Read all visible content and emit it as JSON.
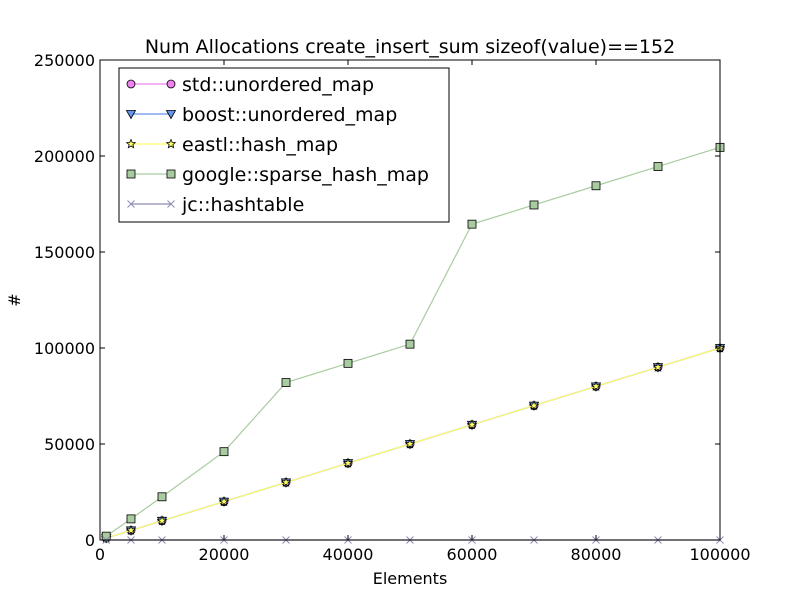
{
  "chart_data": {
    "type": "line",
    "title": "Num Allocations create_insert_sum sizeof(value)==152",
    "xlabel": "Elements",
    "ylabel": "#",
    "xlim": [
      0,
      100000
    ],
    "ylim": [
      0,
      250000
    ],
    "x_ticks": [
      "0",
      "20000",
      "40000",
      "60000",
      "80000",
      "100000"
    ],
    "y_ticks": [
      "0",
      "50000",
      "100000",
      "150000",
      "200000",
      "250000"
    ],
    "grid": false,
    "legend_position": "top-left",
    "x": [
      1000,
      5000,
      10000,
      20000,
      30000,
      40000,
      50000,
      60000,
      70000,
      80000,
      90000,
      100000
    ],
    "series": [
      {
        "name": "std::unordered_map",
        "color": "#ee82ee",
        "marker": "circle",
        "values": [
          1000,
          5000,
          10000,
          20000,
          30000,
          40000,
          50000,
          60000,
          70000,
          80000,
          90000,
          100000
        ]
      },
      {
        "name": "boost::unordered_map",
        "color": "#6495ed",
        "marker": "triangle-down",
        "values": [
          1000,
          5000,
          10000,
          20000,
          30000,
          40000,
          50000,
          60000,
          70000,
          80000,
          90000,
          100000
        ]
      },
      {
        "name": "eastl::hash_map",
        "color": "#ffff66",
        "marker": "star",
        "values": [
          1000,
          5000,
          10000,
          20000,
          30000,
          40000,
          50000,
          60000,
          70000,
          80000,
          90000,
          100000
        ]
      },
      {
        "name": "google::sparse_hash_map",
        "color": "#a8cc9f",
        "marker": "square",
        "values": [
          2000,
          11000,
          22500,
          46000,
          82000,
          92000,
          102000,
          164500,
          174500,
          184500,
          194500,
          204500
        ]
      },
      {
        "name": "jc::hashtable",
        "color": "#8c8cb4",
        "marker": "x",
        "values": [
          0,
          0,
          0,
          0,
          0,
          0,
          0,
          0,
          0,
          0,
          0,
          0
        ]
      }
    ]
  }
}
